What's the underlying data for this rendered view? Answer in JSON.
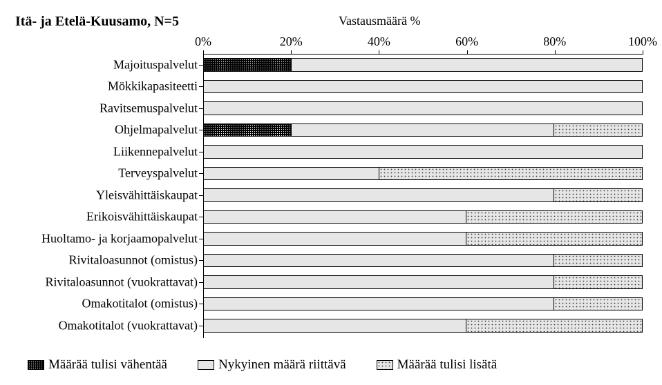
{
  "chart": {
    "type": "stacked-horizontal-bar",
    "title": "Itä- ja Etelä-Kuusamo, N=5",
    "x_axis_title": "Vastausmäärä %",
    "x_ticks": [
      "0%",
      "20%",
      "40%",
      "60%",
      "80%",
      "100%"
    ],
    "x_tick_positions_pct": [
      0,
      20,
      40,
      60,
      80,
      100
    ],
    "xlim": [
      0,
      100
    ],
    "background_color": "#ffffff",
    "text_color": "#000000",
    "font_family": "Times New Roman",
    "title_fontsize": 20,
    "label_fontsize": 18,
    "bar_height_ratio": 0.62,
    "series": [
      {
        "key": "decrease",
        "label": "Määrää tulisi vähentää",
        "fill_class": "fill-decrease"
      },
      {
        "key": "current",
        "label": "Nykyinen määrä riittävä",
        "fill_class": "fill-current"
      },
      {
        "key": "increase",
        "label": "Määrää tulisi lisätä",
        "fill_class": "fill-increase"
      }
    ],
    "categories": [
      {
        "label": "Majoituspalvelut",
        "values": {
          "decrease": 20,
          "current": 80,
          "increase": 0
        }
      },
      {
        "label": "Mökkikapasiteetti",
        "values": {
          "decrease": 0,
          "current": 100,
          "increase": 0
        }
      },
      {
        "label": "Ravitsemuspalvelut",
        "values": {
          "decrease": 0,
          "current": 100,
          "increase": 0
        }
      },
      {
        "label": "Ohjelmapalvelut",
        "values": {
          "decrease": 20,
          "current": 60,
          "increase": 20
        }
      },
      {
        "label": "Liikennepalvelut",
        "values": {
          "decrease": 0,
          "current": 100,
          "increase": 0
        }
      },
      {
        "label": "Terveyspalvelut",
        "values": {
          "decrease": 0,
          "current": 40,
          "increase": 60
        }
      },
      {
        "label": "Yleisvähittäiskaupat",
        "values": {
          "decrease": 0,
          "current": 80,
          "increase": 20
        }
      },
      {
        "label": "Erikoisvähittäiskaupat",
        "values": {
          "decrease": 0,
          "current": 60,
          "increase": 40
        }
      },
      {
        "label": "Huoltamo- ja korjaamopalvelut",
        "values": {
          "decrease": 0,
          "current": 60,
          "increase": 40
        }
      },
      {
        "label": "Rivitaloasunnot (omistus)",
        "values": {
          "decrease": 0,
          "current": 80,
          "increase": 20
        }
      },
      {
        "label": "Rivitaloasunnot (vuokrattavat)",
        "values": {
          "decrease": 0,
          "current": 80,
          "increase": 20
        }
      },
      {
        "label": "Omakotitalot (omistus)",
        "values": {
          "decrease": 0,
          "current": 80,
          "increase": 20
        }
      },
      {
        "label": "Omakotitalot (vuokrattavat)",
        "values": {
          "decrease": 0,
          "current": 60,
          "increase": 40
        }
      }
    ]
  }
}
